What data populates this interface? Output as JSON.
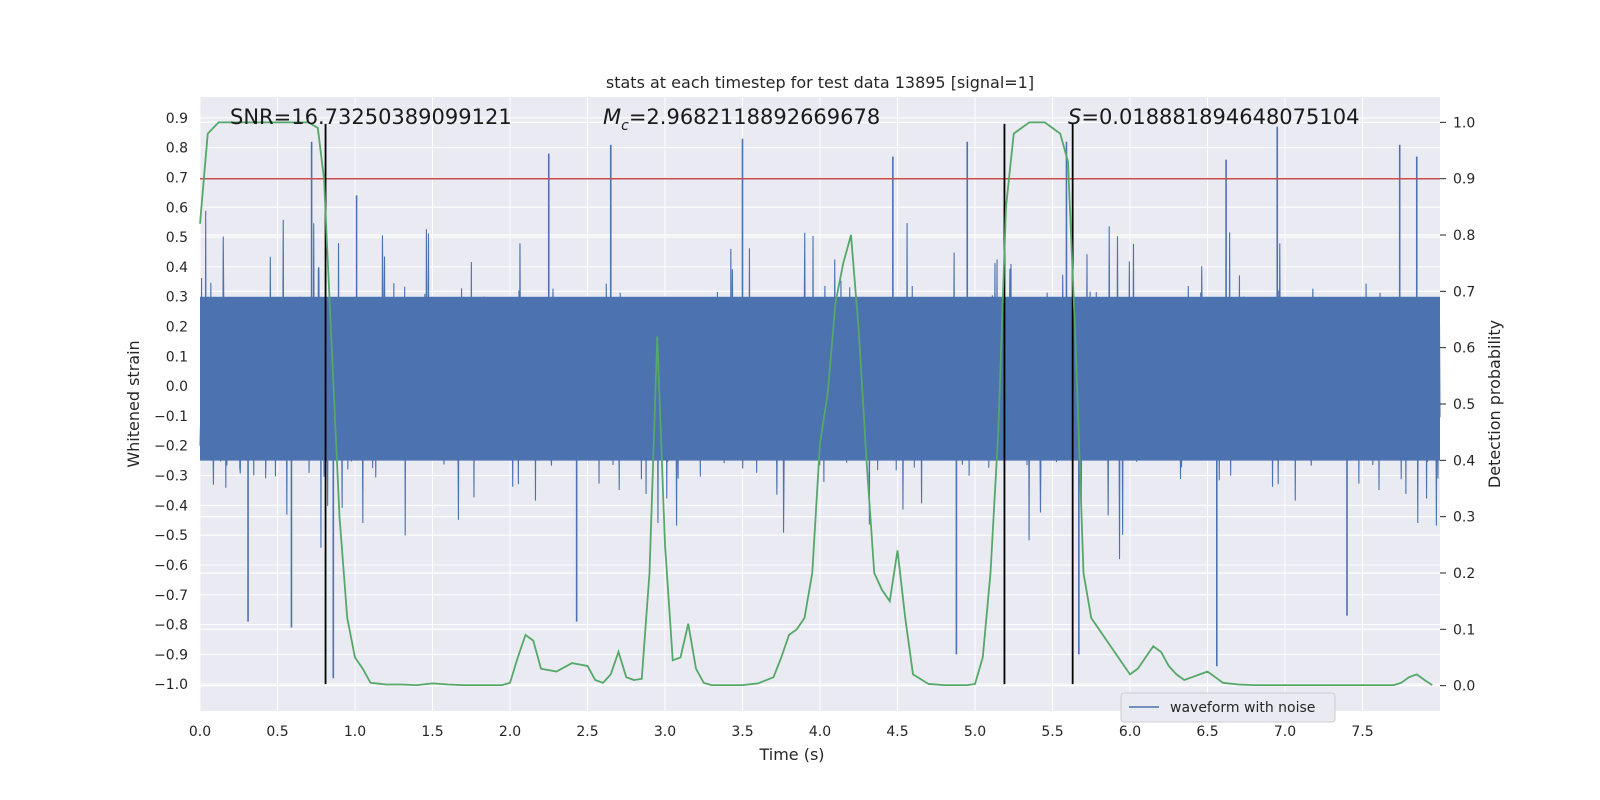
{
  "chart_data": {
    "type": "line",
    "title": "stats at each timestep for test data 13895 [signal=1]",
    "xlabel": "Time (s)",
    "ylabel": "Whitened strain",
    "y2label": "Detection probability",
    "xlim": [
      0.0,
      8.0
    ],
    "ylim": [
      -1.09,
      0.97
    ],
    "y2lim": [
      -0.045,
      1.045
    ],
    "xticks": [
      "0.0",
      "0.5",
      "1.0",
      "1.5",
      "2.0",
      "2.5",
      "3.0",
      "3.5",
      "4.0",
      "4.5",
      "5.0",
      "5.5",
      "6.0",
      "6.5",
      "7.0",
      "7.5"
    ],
    "yticks": [
      "0.9",
      "0.8",
      "0.7",
      "0.6",
      "0.5",
      "0.4",
      "0.3",
      "0.2",
      "0.1",
      "0.0",
      "-0.1",
      "-0.2",
      "-0.3",
      "-0.4",
      "-0.5",
      "-0.6",
      "-0.7",
      "-0.8",
      "-0.9",
      "-1.0"
    ],
    "y2ticks": [
      "1.0",
      "0.9",
      "0.8",
      "0.7",
      "0.6",
      "0.5",
      "0.4",
      "0.3",
      "0.2",
      "0.1",
      "0.0"
    ],
    "grid": true,
    "legend": {
      "placement": "lower-right",
      "entries": [
        "waveform with noise"
      ]
    },
    "annotations": {
      "snr": "SNR=16.73250389099121",
      "mc_symbol": "M",
      "mc_sub": "c",
      "mc_value": "=2.9682118892669678",
      "s_symbol": "S",
      "s_value": "=0.018881894648075104"
    },
    "threshold": {
      "axis": "y2",
      "value": 0.9,
      "color": "#c44e52"
    },
    "vertical_lines": {
      "x": [
        0.81,
        5.19,
        5.63
      ],
      "y_range": [
        -1.0,
        0.88
      ],
      "color": "#000000"
    },
    "waveform": {
      "name": "waveform with noise",
      "color": "#4c72b0",
      "t_start": 0.0,
      "t_end": 8.0,
      "core_band": [
        -0.25,
        0.3
      ],
      "peaks": [
        {
          "t": 0.72,
          "v": 0.82
        },
        {
          "t": 0.86,
          "v": -0.98
        },
        {
          "t": 0.31,
          "v": -0.79
        },
        {
          "t": 0.59,
          "v": -0.81
        },
        {
          "t": 1.01,
          "v": 0.64
        },
        {
          "t": 2.25,
          "v": 0.78
        },
        {
          "t": 2.43,
          "v": -0.79
        },
        {
          "t": 2.65,
          "v": 0.81
        },
        {
          "t": 3.5,
          "v": 0.83
        },
        {
          "t": 4.47,
          "v": 0.77
        },
        {
          "t": 4.88,
          "v": -0.9
        },
        {
          "t": 4.95,
          "v": 0.82
        },
        {
          "t": 5.59,
          "v": 0.82
        },
        {
          "t": 5.67,
          "v": -0.9
        },
        {
          "t": 6.56,
          "v": -0.94
        },
        {
          "t": 6.62,
          "v": 0.76
        },
        {
          "t": 6.95,
          "v": 0.87
        },
        {
          "t": 7.4,
          "v": -0.77
        },
        {
          "t": 7.74,
          "v": 0.81
        },
        {
          "t": 7.85,
          "v": 0.77
        }
      ]
    },
    "series": [
      {
        "name": "Detection probability",
        "axis": "y2",
        "color": "#55a868",
        "x": [
          0.0,
          0.05,
          0.12,
          0.2,
          0.3,
          0.5,
          0.6,
          0.7,
          0.76,
          0.8,
          0.85,
          0.9,
          0.95,
          1.0,
          1.05,
          1.1,
          1.2,
          1.3,
          1.4,
          1.5,
          1.6,
          1.7,
          1.8,
          1.9,
          1.95,
          2.0,
          2.05,
          2.1,
          2.15,
          2.2,
          2.3,
          2.4,
          2.5,
          2.55,
          2.6,
          2.65,
          2.7,
          2.75,
          2.8,
          2.85,
          2.9,
          2.95,
          3.0,
          3.05,
          3.1,
          3.15,
          3.2,
          3.25,
          3.3,
          3.4,
          3.5,
          3.6,
          3.7,
          3.75,
          3.8,
          3.85,
          3.9,
          3.95,
          4.0,
          4.05,
          4.1,
          4.15,
          4.2,
          4.25,
          4.3,
          4.35,
          4.4,
          4.45,
          4.5,
          4.55,
          4.6,
          4.7,
          4.8,
          4.9,
          4.95,
          5.0,
          5.05,
          5.1,
          5.15,
          5.2,
          5.25,
          5.3,
          5.35,
          5.4,
          5.45,
          5.5,
          5.55,
          5.6,
          5.65,
          5.7,
          5.75,
          5.8,
          5.85,
          5.9,
          6.0,
          6.05,
          6.1,
          6.15,
          6.2,
          6.25,
          6.3,
          6.35,
          6.4,
          6.45,
          6.5,
          6.55,
          6.6,
          6.7,
          6.8,
          6.9,
          7.0,
          7.1,
          7.2,
          7.3,
          7.4,
          7.5,
          7.6,
          7.7,
          7.75,
          7.8,
          7.85,
          7.9,
          7.95
        ],
        "y": [
          0.82,
          0.98,
          1.0,
          1.0,
          1.0,
          1.0,
          1.0,
          1.0,
          0.99,
          0.9,
          0.6,
          0.3,
          0.12,
          0.05,
          0.03,
          0.005,
          0.002,
          0.002,
          0.001,
          0.004,
          0.002,
          0.001,
          0.001,
          0.001,
          0.001,
          0.005,
          0.05,
          0.09,
          0.08,
          0.03,
          0.025,
          0.04,
          0.035,
          0.01,
          0.005,
          0.02,
          0.06,
          0.015,
          0.01,
          0.012,
          0.2,
          0.62,
          0.25,
          0.045,
          0.05,
          0.11,
          0.03,
          0.005,
          0.001,
          0.001,
          0.001,
          0.004,
          0.015,
          0.05,
          0.09,
          0.1,
          0.12,
          0.2,
          0.43,
          0.52,
          0.68,
          0.75,
          0.8,
          0.63,
          0.4,
          0.2,
          0.17,
          0.15,
          0.24,
          0.12,
          0.02,
          0.003,
          0.001,
          0.001,
          0.001,
          0.003,
          0.05,
          0.2,
          0.45,
          0.85,
          0.98,
          0.99,
          1.0,
          1.0,
          1.0,
          0.99,
          0.98,
          0.93,
          0.6,
          0.2,
          0.12,
          0.1,
          0.08,
          0.06,
          0.02,
          0.03,
          0.05,
          0.07,
          0.06,
          0.035,
          0.02,
          0.01,
          0.015,
          0.02,
          0.025,
          0.015,
          0.005,
          0.002,
          0.001,
          0.001,
          0.001,
          0.001,
          0.001,
          0.001,
          0.001,
          0.001,
          0.001,
          0.001,
          0.005,
          0.015,
          0.02,
          0.01,
          0.001
        ]
      }
    ]
  }
}
